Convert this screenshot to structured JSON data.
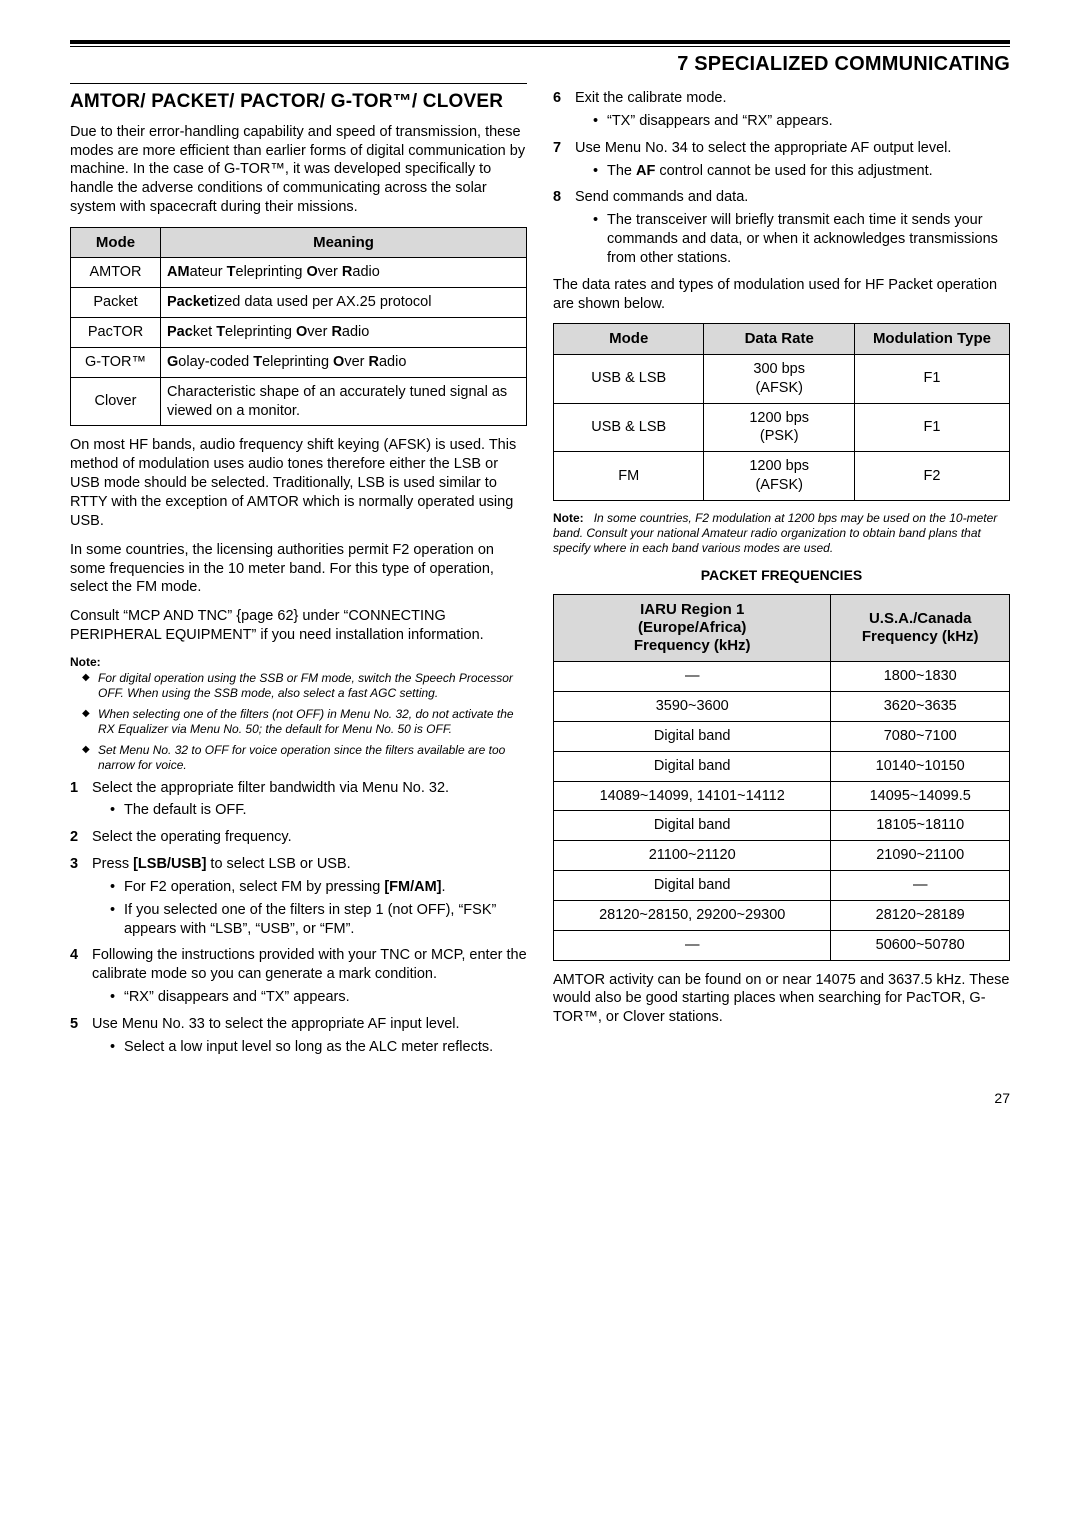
{
  "chapter": "7  SPECIALIZED COMMUNICATING",
  "section": "AMTOR/ PACKET/ PACTOR/ G-TOR™/ CLOVER",
  "intro": "Due to their error-handling capability and speed of transmission, these modes are more efficient than earlier forms of digital communication by machine.  In the case of G-TOR™, it was developed specifically to handle the adverse conditions of communicating across the solar system with spacecraft during their missions.",
  "modeTable": {
    "headers": [
      "Mode",
      "Meaning"
    ],
    "rows": [
      {
        "mode": "AMTOR",
        "meaning": "<b>AM</b>ateur <b>T</b>eleprinting <b>O</b>ver <b>R</b>adio"
      },
      {
        "mode": "Packet",
        "meaning": "<b>Packet</b>ized data used per AX.25 protocol"
      },
      {
        "mode": "PacTOR",
        "meaning": "<b>Pac</b>ket <b>T</b>eleprinting <b>O</b>ver <b>R</b>adio"
      },
      {
        "mode": "G-TOR™",
        "meaning": "<b>G</b>olay-coded <b>T</b>eleprinting <b>O</b>ver <b>R</b>adio"
      },
      {
        "mode": "Clover",
        "meaning": "Characteristic shape of an accurately tuned signal as viewed on a monitor."
      }
    ]
  },
  "p2": "On most HF bands, audio frequency shift keying (AFSK) is used.  This method of modulation uses audio tones therefore either the LSB or USB mode should be selected.  Traditionally, LSB is used similar to RTTY with the exception of AMTOR which is normally operated using USB.",
  "p3": "In some countries, the licensing authorities permit F2 operation on some frequencies in the 10 meter band.  For this type of operation, select the FM mode.",
  "p4": "Consult “MCP AND TNC” {page 62} under “CONNECTING PERIPHERAL EQUIPMENT” if you need installation information.",
  "noteLabel": "Note:",
  "notes": [
    "For digital operation using the SSB or FM mode, switch the Speech Processor OFF.  When using the SSB mode, also select a fast AGC setting.",
    "When selecting one of the filters (not OFF) in Menu No. 32, do not activate the RX Equalizer via Menu No. 50; the default for Menu No. 50 is OFF.",
    "Set Menu No. 32 to OFF for voice operation since the filters available are too narrow for voice."
  ],
  "steps": [
    {
      "n": "1",
      "t": "Select the appropriate filter bandwidth via Menu No. 32.",
      "sub": [
        "The default is OFF."
      ]
    },
    {
      "n": "2",
      "t": "Select the operating frequency."
    },
    {
      "n": "3",
      "t": "Press <b>[LSB/USB]</b> to select LSB or USB.",
      "sub": [
        "For F2 operation, select FM by pressing <b>[FM/AM]</b>.",
        "If you selected one of the filters in step 1 (not OFF), “FSK” appears with “LSB”, “USB”, or “FM”."
      ]
    },
    {
      "n": "4",
      "t": "Following the instructions provided with your TNC or MCP, enter the calibrate mode so you can generate a mark condition.",
      "sub": [
        "“RX” disappears and “TX” appears."
      ]
    },
    {
      "n": "5",
      "t": "Use Menu No. 33 to select the appropriate AF input level.",
      "sub": [
        "Select a low input level so long as the ALC meter reflects."
      ]
    }
  ],
  "stepsR": [
    {
      "n": "6",
      "t": "Exit the calibrate mode.",
      "sub": [
        "“TX” disappears and “RX” appears."
      ]
    },
    {
      "n": "7",
      "t": "Use Menu No. 34 to select the appropriate AF output level.",
      "sub": [
        "The <b>AF</b> control cannot be used for this adjustment."
      ]
    },
    {
      "n": "8",
      "t": "Send commands and data.",
      "sub": [
        "The transceiver will briefly transmit each time it sends your commands and data, or when it acknowledges transmissions from other stations."
      ]
    }
  ],
  "p5": "The data rates and types of modulation used for HF Packet operation are shown below.",
  "rateTable": {
    "headers": [
      "Mode",
      "Data Rate",
      "Modulation Type"
    ],
    "rows": [
      {
        "mode": "USB & LSB",
        "rate": "300 bps<br>(AFSK)",
        "mod": "F1"
      },
      {
        "mode": "USB & LSB",
        "rate": "1200 bps<br>(PSK)",
        "mod": "F1"
      },
      {
        "mode": "FM",
        "rate": "1200 bps<br>(AFSK)",
        "mod": "F2"
      }
    ]
  },
  "noteR": "In some countries, F2 modulation at 1200 bps may be used on the 10-meter band.  Consult your national Amateur radio organization to obtain band plans that specify where in each band various modes are used.",
  "subhead": "PACKET FREQUENCIES",
  "freqTable": {
    "headers": [
      "IARU Region 1<br>(Europe/Africa)<br>Frequency (kHz)",
      "U.S.A./Canada<br>Frequency (kHz)"
    ],
    "rows": [
      [
        "—",
        "1800~1830"
      ],
      [
        "3590~3600",
        "3620~3635"
      ],
      [
        "Digital band",
        "7080~7100"
      ],
      [
        "Digital band",
        "10140~10150"
      ],
      [
        "14089~14099, 14101~14112",
        "14095~14099.5"
      ],
      [
        "Digital band",
        "18105~18110"
      ],
      [
        "21100~21120",
        "21090~21100"
      ],
      [
        "Digital band",
        "—"
      ],
      [
        "28120~28150, 29200~29300",
        "28120~28189"
      ],
      [
        "—",
        "50600~50780"
      ]
    ]
  },
  "p6": "AMTOR activity can be found on or near 14075 and 3637.5 kHz.  These would also be good starting places when searching for PacTOR, G-TOR™, or Clover stations.",
  "pageNum": "27",
  "colors": {
    "headerBg": "#d9d9d9",
    "border": "#000000",
    "text": "#000000",
    "bg": "#ffffff"
  },
  "fonts": {
    "body": "Arial",
    "narrow": "Arial Narrow",
    "bodySize": 14.5,
    "titleSize": 19,
    "chapterSize": 20,
    "smallSize": 12
  }
}
